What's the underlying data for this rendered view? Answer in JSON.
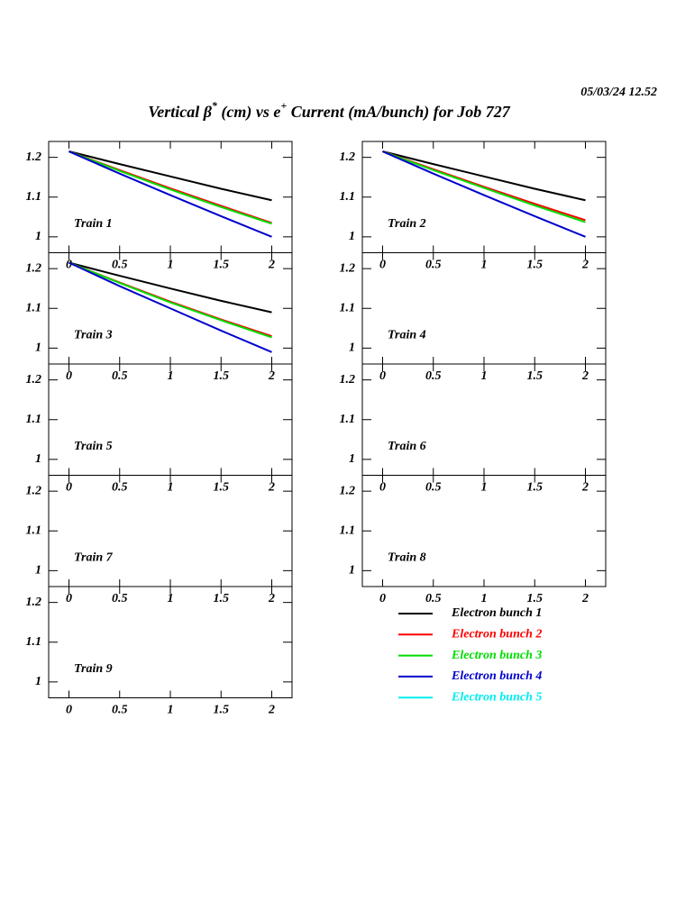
{
  "header": {
    "timestamp": "05/03/24   12.52",
    "title_parts": [
      "Vertical β",
      "*",
      " (cm) vs e",
      "+",
      " Current (mA/bunch) for Job 727"
    ]
  },
  "legend": {
    "entries": [
      {
        "name": "Electron bunch 1",
        "color": "#000000"
      },
      {
        "name": "Electron bunch 2",
        "color": "#ff0000"
      },
      {
        "name": "Electron bunch 3",
        "color": "#00dd00"
      },
      {
        "name": "Electron bunch 4",
        "color": "#0000cc"
      },
      {
        "name": "Electron bunch 5",
        "color": "#00eeee"
      }
    ]
  },
  "chart_data": [
    {
      "type": "line",
      "title": "Train 1",
      "x": [
        0,
        0.5,
        1,
        1.5,
        2
      ],
      "xlim": [
        -0.2,
        2.2
      ],
      "ylim": [
        0.96,
        1.24
      ],
      "xticks": [
        0,
        0.5,
        1,
        1.5,
        2
      ],
      "yticks": [
        1,
        1.1,
        1.2
      ],
      "series": [
        {
          "name": "Electron bunch 1",
          "color": "#000000",
          "values": [
            1.215,
            1.183,
            1.152,
            1.121,
            1.092
          ]
        },
        {
          "name": "Electron bunch 2",
          "color": "#ff0000",
          "values": [
            1.215,
            1.168,
            1.122,
            1.078,
            1.035
          ]
        },
        {
          "name": "Electron bunch 3",
          "color": "#00dd00",
          "values": [
            1.215,
            1.166,
            1.119,
            1.075,
            1.033
          ]
        },
        {
          "name": "Electron bunch 4",
          "color": "#0000cc",
          "values": [
            1.215,
            1.159,
            1.105,
            1.052,
            1.0
          ]
        }
      ]
    },
    {
      "type": "line",
      "title": "Train 2",
      "x": [
        0,
        0.5,
        1,
        1.5,
        2
      ],
      "xlim": [
        -0.2,
        2.2
      ],
      "ylim": [
        0.96,
        1.24
      ],
      "xticks": [
        0,
        0.5,
        1,
        1.5,
        2
      ],
      "yticks": [
        1,
        1.1,
        1.2
      ],
      "series": [
        {
          "name": "Electron bunch 1",
          "color": "#000000",
          "values": [
            1.215,
            1.183,
            1.152,
            1.121,
            1.092
          ]
        },
        {
          "name": "Electron bunch 2",
          "color": "#ff0000",
          "values": [
            1.215,
            1.17,
            1.126,
            1.083,
            1.042
          ]
        },
        {
          "name": "Electron bunch 3",
          "color": "#00dd00",
          "values": [
            1.215,
            1.168,
            1.123,
            1.079,
            1.037
          ]
        },
        {
          "name": "Electron bunch 4",
          "color": "#0000cc",
          "values": [
            1.215,
            1.159,
            1.105,
            1.052,
            1.0
          ]
        }
      ]
    },
    {
      "type": "line",
      "title": "Train 3",
      "x": [
        0,
        0.5,
        1,
        1.5,
        2
      ],
      "xlim": [
        -0.2,
        2.2
      ],
      "ylim": [
        0.96,
        1.24
      ],
      "xticks": [
        0,
        0.5,
        1,
        1.5,
        2
      ],
      "yticks": [
        1,
        1.1,
        1.2
      ],
      "series": [
        {
          "name": "Electron bunch 1",
          "color": "#000000",
          "values": [
            1.215,
            1.182,
            1.15,
            1.119,
            1.09
          ]
        },
        {
          "name": "Electron bunch 2",
          "color": "#ff0000",
          "values": [
            1.215,
            1.165,
            1.117,
            1.072,
            1.03
          ]
        },
        {
          "name": "Electron bunch 3",
          "color": "#00dd00",
          "values": [
            1.215,
            1.164,
            1.115,
            1.07,
            1.027
          ]
        },
        {
          "name": "Electron bunch 4",
          "color": "#0000cc",
          "values": [
            1.215,
            1.156,
            1.1,
            1.044,
            0.99
          ]
        }
      ]
    },
    {
      "type": "line",
      "title": "Train 4",
      "x": [],
      "xlim": [
        -0.2,
        2.2
      ],
      "ylim": [
        0.96,
        1.24
      ],
      "xticks": [
        0,
        0.5,
        1,
        1.5,
        2
      ],
      "yticks": [
        1,
        1.1,
        1.2
      ],
      "series": []
    },
    {
      "type": "line",
      "title": "Train 5",
      "x": [],
      "xlim": [
        -0.2,
        2.2
      ],
      "ylim": [
        0.96,
        1.24
      ],
      "xticks": [
        0,
        0.5,
        1,
        1.5,
        2
      ],
      "yticks": [
        1,
        1.1,
        1.2
      ],
      "series": []
    },
    {
      "type": "line",
      "title": "Train 6",
      "x": [],
      "xlim": [
        -0.2,
        2.2
      ],
      "ylim": [
        0.96,
        1.24
      ],
      "xticks": [
        0,
        0.5,
        1,
        1.5,
        2
      ],
      "yticks": [
        1,
        1.1,
        1.2
      ],
      "series": []
    },
    {
      "type": "line",
      "title": "Train 7",
      "x": [],
      "xlim": [
        -0.2,
        2.2
      ],
      "ylim": [
        0.96,
        1.24
      ],
      "xticks": [
        0,
        0.5,
        1,
        1.5,
        2
      ],
      "yticks": [
        1,
        1.1,
        1.2
      ],
      "series": []
    },
    {
      "type": "line",
      "title": "Train 8",
      "x": [],
      "xlim": [
        -0.2,
        2.2
      ],
      "ylim": [
        0.96,
        1.24
      ],
      "xticks": [
        0,
        0.5,
        1,
        1.5,
        2
      ],
      "yticks": [
        1,
        1.1,
        1.2
      ],
      "series": []
    },
    {
      "type": "line",
      "title": "Train 9",
      "x": [],
      "xlim": [
        -0.2,
        2.2
      ],
      "ylim": [
        0.96,
        1.24
      ],
      "xticks": [
        0,
        0.5,
        1,
        1.5,
        2
      ],
      "yticks": [
        1,
        1.1,
        1.2
      ],
      "series": []
    }
  ]
}
